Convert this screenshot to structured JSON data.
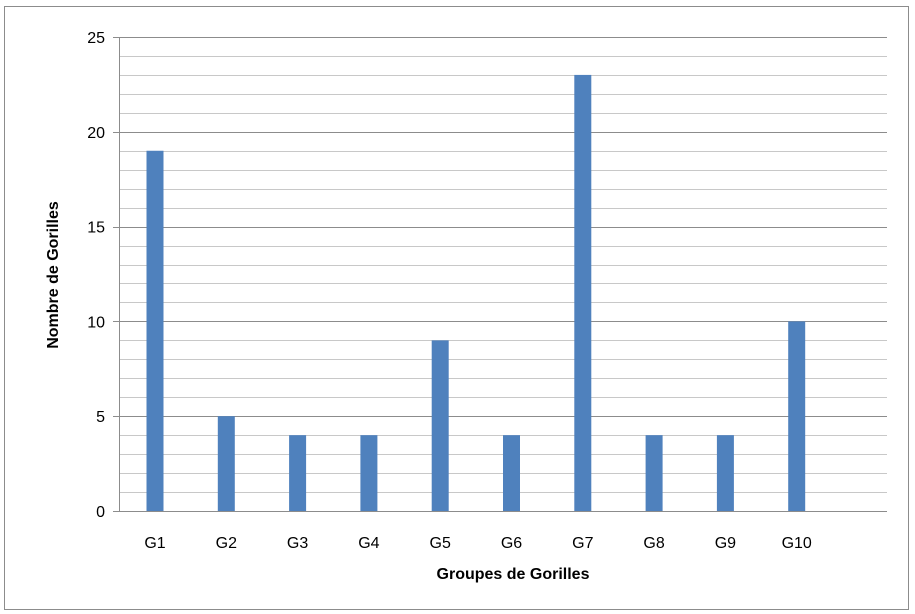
{
  "chart_data": {
    "type": "bar",
    "title": "",
    "xlabel": "Groupes de Gorilles",
    "ylabel": "Nombre de Gorilles",
    "categories": [
      "G1",
      "G2",
      "G3",
      "G4",
      "G5",
      "G6",
      "G7",
      "G8",
      "G9",
      "G10"
    ],
    "series": [
      {
        "values": [
          19,
          5,
          4,
          4,
          9,
          4,
          23,
          4,
          4,
          10
        ]
      }
    ],
    "ylim": [
      0,
      25
    ],
    "yticks": [
      "0",
      "5",
      "10",
      "15",
      "20",
      "25"
    ],
    "ytick_values": [
      0,
      5,
      10,
      15,
      20,
      25
    ],
    "minor_step": 1,
    "grid": true,
    "legend": "none",
    "colors": {
      "bar": "#4f81bd",
      "major_grid": "#8c8c8c",
      "minor_grid": "#c8c8c8",
      "axis": "#8c8c8c"
    }
  }
}
